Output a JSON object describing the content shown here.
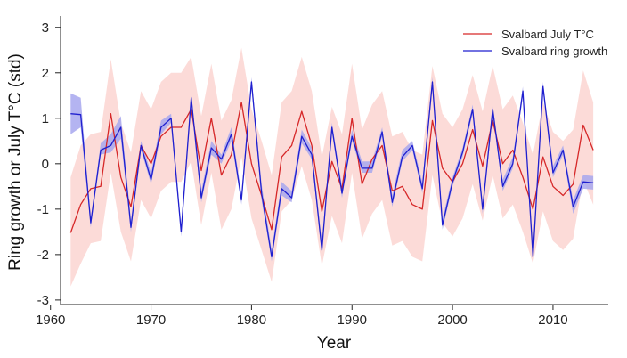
{
  "chart_data": {
    "type": "line",
    "xlabel": "Year",
    "ylabel": "Ring growth or July T°C (std)",
    "xlim": [
      1961,
      2015.5
    ],
    "ylim": [
      -3.1,
      3.25
    ],
    "xticks": [
      1960,
      1970,
      1980,
      1990,
      2000,
      2010
    ],
    "yticks": [
      -3,
      -2,
      -1,
      0,
      1,
      2,
      3
    ],
    "legend_position": "top-right",
    "grid": false,
    "x": [
      1962,
      1963,
      1964,
      1965,
      1966,
      1967,
      1968,
      1969,
      1970,
      1971,
      1972,
      1973,
      1974,
      1975,
      1976,
      1977,
      1978,
      1979,
      1980,
      1981,
      1982,
      1983,
      1984,
      1985,
      1986,
      1987,
      1988,
      1989,
      1990,
      1991,
      1992,
      1993,
      1994,
      1995,
      1996,
      1997,
      1998,
      1999,
      2000,
      2001,
      2002,
      2003,
      2004,
      2005,
      2006,
      2007,
      2008,
      2009,
      2010,
      2011,
      2012,
      2013,
      2014
    ],
    "series": [
      {
        "name": "Svalbard July T°C",
        "color": "#d62728",
        "band_color": "#fcd9d6",
        "values": [
          -1.52,
          -0.9,
          -0.55,
          -0.5,
          1.1,
          -0.3,
          -0.95,
          0.4,
          0.0,
          0.6,
          0.8,
          0.8,
          1.2,
          -0.15,
          1.0,
          -0.25,
          0.2,
          1.35,
          0.0,
          -0.7,
          -1.45,
          0.15,
          0.4,
          1.15,
          0.4,
          -1.05,
          0.05,
          -0.55,
          1.0,
          -0.45,
          0.1,
          0.4,
          -0.6,
          -0.5,
          -0.9,
          -1.0,
          0.95,
          -0.1,
          -0.4,
          0.0,
          0.75,
          -0.05,
          0.95,
          0.0,
          0.3,
          -0.3,
          -1.0,
          0.15,
          -0.5,
          -0.7,
          -0.45,
          0.85,
          0.3
        ],
        "band_low": [
          -2.7,
          -2.2,
          -1.75,
          -1.7,
          -0.2,
          -1.5,
          -2.15,
          -0.8,
          -1.2,
          -0.6,
          -0.4,
          -0.4,
          0.05,
          -1.35,
          -0.2,
          -1.45,
          -1.0,
          0.15,
          -1.2,
          -1.9,
          -2.6,
          -1.05,
          -0.8,
          -0.05,
          -0.8,
          -2.25,
          -1.15,
          -1.75,
          -0.2,
          -1.65,
          -1.1,
          -0.8,
          -1.8,
          -1.7,
          -2.05,
          -2.15,
          -0.25,
          -1.3,
          -1.6,
          -1.2,
          -0.45,
          -1.25,
          -0.25,
          -1.2,
          -0.9,
          -1.5,
          -2.2,
          -1.05,
          -1.7,
          -1.9,
          -1.65,
          -0.35,
          -0.9
        ],
        "band_high": [
          -0.3,
          0.4,
          0.65,
          0.7,
          2.3,
          0.9,
          0.25,
          1.6,
          1.2,
          1.8,
          2.0,
          2.0,
          2.35,
          1.05,
          2.2,
          0.95,
          1.4,
          2.55,
          1.2,
          0.5,
          -0.25,
          1.35,
          1.6,
          2.35,
          1.6,
          0.15,
          1.25,
          0.65,
          2.2,
          0.75,
          1.3,
          1.6,
          0.6,
          0.7,
          0.3,
          0.2,
          2.15,
          1.1,
          0.8,
          1.2,
          1.95,
          1.15,
          2.15,
          1.2,
          1.5,
          0.9,
          0.2,
          1.35,
          0.7,
          0.5,
          0.75,
          2.05,
          1.35
        ]
      },
      {
        "name": "Svalbard ring growth",
        "color": "#1f1fcf",
        "band_color": "#a7a7ee",
        "values": [
          1.1,
          1.08,
          -1.3,
          0.3,
          0.4,
          0.8,
          -1.4,
          0.4,
          -0.35,
          0.8,
          1.0,
          -1.5,
          1.45,
          -0.75,
          0.35,
          0.1,
          0.65,
          -0.8,
          1.8,
          -0.65,
          -2.05,
          -0.55,
          -0.75,
          0.6,
          0.2,
          -1.9,
          0.8,
          -0.65,
          0.6,
          -0.1,
          -0.1,
          0.7,
          -0.85,
          0.15,
          0.4,
          -0.55,
          1.8,
          -1.35,
          -0.4,
          0.25,
          1.2,
          -1.0,
          1.2,
          -0.5,
          0.0,
          1.6,
          -2.05,
          1.7,
          -0.2,
          0.3,
          -0.95,
          -0.4,
          -0.42
        ],
        "band_low": [
          0.65,
          0.8,
          -1.4,
          0.2,
          0.25,
          0.55,
          -1.5,
          0.3,
          -0.45,
          0.65,
          0.9,
          -1.6,
          1.35,
          -0.85,
          0.2,
          0.0,
          0.5,
          -0.9,
          1.7,
          -0.8,
          -2.15,
          -0.7,
          -0.85,
          0.45,
          0.1,
          -2.0,
          0.7,
          -0.75,
          0.5,
          -0.2,
          -0.2,
          0.6,
          -0.95,
          0.05,
          0.3,
          -0.65,
          1.7,
          -1.45,
          -0.5,
          0.15,
          1.1,
          -1.1,
          1.1,
          -0.6,
          -0.1,
          1.5,
          -2.15,
          1.6,
          -0.3,
          0.2,
          -1.1,
          -0.55,
          -0.57
        ],
        "band_high": [
          1.55,
          1.45,
          -1.2,
          0.45,
          0.65,
          1.05,
          -1.25,
          0.5,
          -0.2,
          0.95,
          1.1,
          -1.35,
          1.55,
          -0.6,
          0.5,
          0.2,
          0.8,
          -0.65,
          1.9,
          -0.45,
          -1.9,
          -0.4,
          -0.6,
          0.75,
          0.35,
          -1.75,
          0.9,
          -0.5,
          0.75,
          0.05,
          0.05,
          0.8,
          -0.7,
          0.3,
          0.5,
          -0.4,
          1.9,
          -1.2,
          -0.3,
          0.35,
          1.3,
          -0.85,
          1.3,
          -0.35,
          0.15,
          1.7,
          -1.95,
          1.8,
          -0.05,
          0.4,
          -0.8,
          -0.25,
          -0.27
        ]
      }
    ]
  }
}
